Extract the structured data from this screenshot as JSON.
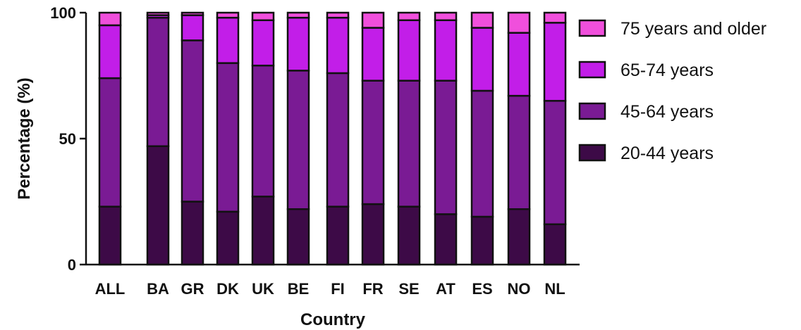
{
  "chart_data": {
    "type": "bar",
    "stacked": true,
    "xlabel": "Country",
    "ylabel": "Percentage (%)",
    "ylim": [
      0,
      100
    ],
    "yticks": [
      0,
      50,
      100
    ],
    "categories": [
      "ALL",
      "BA",
      "GR",
      "DK",
      "UK",
      "BE",
      "FI",
      "FR",
      "SE",
      "AT",
      "ES",
      "NO",
      "NL"
    ],
    "series": [
      {
        "name": "20-44 years",
        "color": "#3d0a47",
        "values": [
          23,
          47,
          25,
          21,
          27,
          22,
          23,
          24,
          23,
          20,
          19,
          22,
          16
        ]
      },
      {
        "name": "45-64 years",
        "color": "#7a1b94",
        "values": [
          51,
          51,
          64,
          59,
          52,
          55,
          53,
          49,
          50,
          53,
          50,
          45,
          49
        ]
      },
      {
        "name": "65-74 years",
        "color": "#c21ee8",
        "values": [
          21,
          1,
          10,
          18,
          18,
          21,
          22,
          21,
          24,
          24,
          25,
          25,
          31
        ]
      },
      {
        "name": "75 years and older",
        "color": "#f04fdc",
        "values": [
          5,
          1,
          1,
          2,
          3,
          2,
          2,
          6,
          3,
          3,
          6,
          8,
          4
        ]
      }
    ],
    "legend_position": "right",
    "legend_order": [
      "75 years and older",
      "65-74 years",
      "45-64 years",
      "20-44 years"
    ],
    "grid": false
  }
}
